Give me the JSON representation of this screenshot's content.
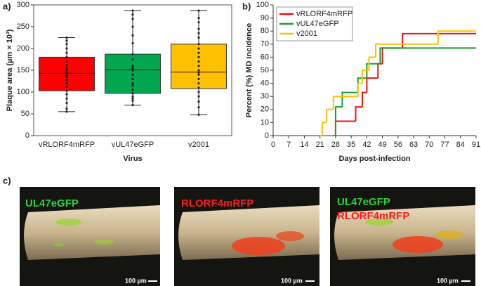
{
  "chart_data": [
    {
      "type": "box",
      "label": "a)",
      "ylabel": "Plaque area (µm × 10³)",
      "xlabel": "Virus",
      "categories": [
        "vRLORF4mRFP",
        "vUL47eGFP",
        "v2001"
      ],
      "colors": [
        "#ff0000",
        "#00a650",
        "#ffc000"
      ],
      "ylim": [
        0,
        300
      ],
      "yticks": [
        0,
        50,
        100,
        150,
        200,
        250,
        300
      ],
      "boxes": [
        {
          "min": 55,
          "q1": 103,
          "median": 143,
          "q3": 180,
          "max": 225,
          "points": [
            225,
            218,
            210,
            200,
            190,
            180,
            170,
            162,
            155,
            150,
            145,
            140,
            135,
            128,
            120,
            112,
            103,
            95,
            85,
            75,
            62,
            55
          ]
        },
        {
          "min": 70,
          "q1": 97,
          "median": 151,
          "q3": 187,
          "max": 287,
          "points": [
            287,
            278,
            268,
            250,
            230,
            212,
            187,
            175,
            160,
            155,
            150,
            140,
            130,
            120,
            115,
            105,
            97,
            90,
            85,
            80,
            70
          ]
        },
        {
          "min": 48,
          "q1": 108,
          "median": 146,
          "q3": 210,
          "max": 287,
          "points": [
            287,
            270,
            260,
            245,
            235,
            225,
            210,
            200,
            190,
            180,
            170,
            160,
            150,
            145,
            140,
            130,
            120,
            110,
            100,
            90,
            78,
            65,
            48
          ]
        }
      ]
    },
    {
      "type": "step",
      "label": "b)",
      "ylabel": "Percent (%) MD incidence",
      "xlabel": "Days post-infection",
      "xlim": [
        0,
        91
      ],
      "xticks": [
        0,
        7,
        14,
        21,
        28,
        35,
        42,
        49,
        56,
        63,
        70,
        77,
        84,
        91
      ],
      "ylim": [
        0,
        100
      ],
      "yticks": [
        0,
        10,
        20,
        30,
        40,
        50,
        60,
        70,
        80,
        90,
        100
      ],
      "legend": "upper left",
      "series": [
        {
          "name": "vRLORF4mRFP",
          "color": "#ee1111",
          "x": [
            27,
            28,
            35,
            37,
            40,
            42,
            47,
            49,
            58,
            91
          ],
          "values": [
            0,
            11,
            11,
            22,
            33,
            44,
            55,
            67,
            78,
            78
          ]
        },
        {
          "name": "vUL47eGFP",
          "color": "#1a9e2e",
          "x": [
            27,
            28,
            31,
            38,
            42,
            48,
            91
          ],
          "values": [
            0,
            22,
            33,
            44,
            55,
            67,
            67
          ]
        },
        {
          "name": "v2001",
          "color": "#ffc000",
          "x": [
            21,
            22,
            24,
            27,
            38,
            40,
            43,
            46,
            74,
            91
          ],
          "values": [
            0,
            10,
            20,
            30,
            40,
            50,
            60,
            70,
            80,
            80
          ]
        }
      ]
    }
  ],
  "panel_c": {
    "label": "c)",
    "scale_bar": "100 µm",
    "images": [
      {
        "labels": [
          "UL47eGFP"
        ]
      },
      {
        "labels": [
          "RLORF4mRFP"
        ]
      },
      {
        "labels": [
          "UL47eGFP",
          "RLORF4mRFP"
        ]
      }
    ]
  }
}
